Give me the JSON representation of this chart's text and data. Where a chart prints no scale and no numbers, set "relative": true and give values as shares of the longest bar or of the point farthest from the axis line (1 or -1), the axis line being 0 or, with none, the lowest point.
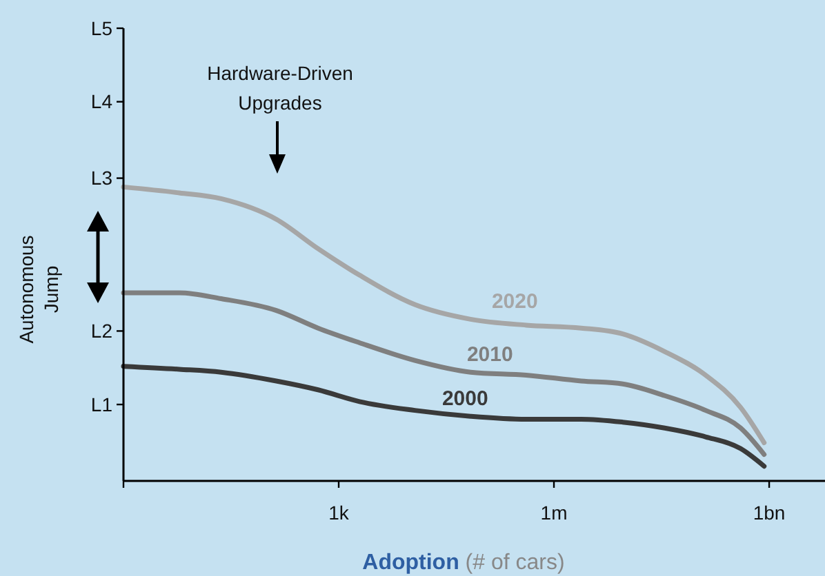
{
  "chart_data": {
    "type": "line",
    "xlabel": "Adoption (# of cars)",
    "ylabel": "Autonomous Jump",
    "log": "x",
    "relative": true,
    "x": [
      1,
      6,
      23,
      135,
      515,
      1950,
      11500,
      69000,
      410000,
      2400000,
      9100000,
      35000000,
      130000000,
      400000000,
      850000000
    ],
    "series": [
      {
        "name": "2020",
        "color": "#a6a6a6",
        "values": [
          1,
          0.98,
          0.96,
          0.89,
          0.79,
          0.7,
          0.6,
          0.55,
          0.53,
          0.52,
          0.5,
          0.44,
          0.36,
          0.25,
          0.13
        ]
      },
      {
        "name": "2010",
        "color": "#7f7f7f",
        "values": [
          0.64,
          0.64,
          0.62,
          0.58,
          0.52,
          0.47,
          0.41,
          0.37,
          0.36,
          0.34,
          0.33,
          0.29,
          0.24,
          0.18,
          0.09
        ]
      },
      {
        "name": "2000",
        "color": "#3a3a3a",
        "values": [
          0.39,
          0.38,
          0.37,
          0.34,
          0.31,
          0.27,
          0.24,
          0.22,
          0.21,
          0.21,
          0.2,
          0.18,
          0.15,
          0.11,
          0.05
        ]
      }
    ],
    "xlim": [
      1,
      6000000000
    ],
    "xticks": [
      {
        "value": 1,
        "label": null
      },
      {
        "value": 1000,
        "label": "1k"
      },
      {
        "value": 1000000,
        "label": "1m"
      },
      {
        "value": 1000000000,
        "label": "1bn"
      }
    ],
    "annotations": [
      "Hardware-Driven Upgrades"
    ],
    "ref_lines": [
      {
        "axis": "y",
        "value": 0.26,
        "label": "L1"
      },
      {
        "axis": "y",
        "value": 0.51,
        "label": "L2"
      },
      {
        "axis": "y",
        "value": 1.03,
        "label": "L3"
      },
      {
        "axis": "y",
        "value": 1.29,
        "label": "L4"
      },
      {
        "axis": "y",
        "value": 1.54,
        "label": "L5"
      }
    ],
    "legend": false,
    "marker": "none",
    "line_style": "solid"
  }
}
